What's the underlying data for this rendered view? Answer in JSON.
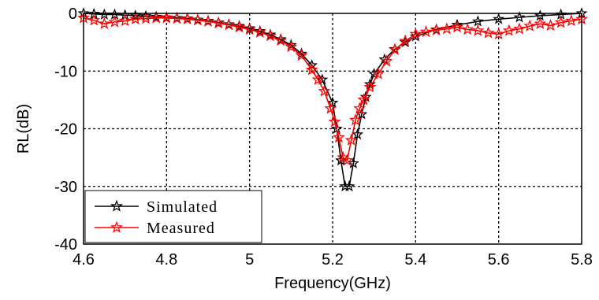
{
  "chart_data": {
    "type": "line",
    "xlabel": "Frequency(GHz)",
    "ylabel": "RL(dB)",
    "xlim": [
      4.6,
      5.8
    ],
    "ylim": [
      -40,
      0
    ],
    "xticks": [
      "4.6",
      "4.8",
      "5",
      "5.2",
      "5.4",
      "5.6",
      "5.8"
    ],
    "yticks": [
      "0",
      "-10",
      "-20",
      "-30",
      "-40"
    ],
    "grid": true,
    "legend_position": "bottom-left",
    "series": [
      {
        "name": "Simulated",
        "color": "#000000",
        "marker": "star",
        "x": [
          4.6,
          4.625,
          4.65,
          4.675,
          4.7,
          4.725,
          4.75,
          4.775,
          4.8,
          4.825,
          4.85,
          4.875,
          4.9,
          4.925,
          4.95,
          4.975,
          5.0,
          5.025,
          5.05,
          5.075,
          5.1,
          5.125,
          5.15,
          5.175,
          5.2,
          5.21,
          5.22,
          5.23,
          5.24,
          5.25,
          5.26,
          5.27,
          5.28,
          5.29,
          5.3,
          5.325,
          5.35,
          5.375,
          5.4,
          5.45,
          5.5,
          5.55,
          5.6,
          5.65,
          5.7,
          5.75,
          5.8
        ],
        "y": [
          0,
          -0.1,
          -0.2,
          -0.2,
          -0.3,
          -0.4,
          -0.5,
          -0.6,
          -0.7,
          -0.8,
          -0.9,
          -1.1,
          -1.3,
          -1.6,
          -1.9,
          -2.2,
          -2.6,
          -3.1,
          -3.7,
          -4.5,
          -5.5,
          -7.0,
          -9.0,
          -11.5,
          -15.5,
          -20.0,
          -25.5,
          -30.0,
          -30.0,
          -26.0,
          -21.0,
          -17.5,
          -14.5,
          -12.3,
          -10.5,
          -8.0,
          -6.2,
          -5.0,
          -4.0,
          -2.8,
          -2.0,
          -1.4,
          -1.0,
          -0.7,
          -0.4,
          -0.2,
          0
        ]
      },
      {
        "name": "Measured",
        "color": "#ff0000",
        "marker": "star-outline",
        "x": [
          4.6,
          4.625,
          4.65,
          4.675,
          4.7,
          4.725,
          4.75,
          4.775,
          4.8,
          4.825,
          4.85,
          4.875,
          4.9,
          4.925,
          4.95,
          4.975,
          5.0,
          5.025,
          5.05,
          5.075,
          5.1,
          5.125,
          5.15,
          5.165,
          5.18,
          5.195,
          5.205,
          5.215,
          5.225,
          5.235,
          5.245,
          5.255,
          5.265,
          5.275,
          5.29,
          5.31,
          5.33,
          5.35,
          5.375,
          5.4,
          5.425,
          5.45,
          5.475,
          5.5,
          5.525,
          5.55,
          5.575,
          5.6,
          5.625,
          5.65,
          5.675,
          5.7,
          5.725,
          5.75,
          5.775,
          5.8
        ],
        "y": [
          -0.8,
          -1.2,
          -1.8,
          -1.5,
          -1.3,
          -1.0,
          -0.9,
          -0.8,
          -0.8,
          -0.9,
          -1.0,
          -1.2,
          -1.4,
          -1.7,
          -2.0,
          -2.4,
          -2.8,
          -3.3,
          -3.9,
          -4.7,
          -5.8,
          -7.3,
          -9.8,
          -11.5,
          -13.5,
          -16.5,
          -18.8,
          -21.5,
          -25.0,
          -25.5,
          -22.0,
          -18.5,
          -16.5,
          -15.0,
          -12.8,
          -10.5,
          -8.3,
          -6.3,
          -4.8,
          -3.6,
          -3.2,
          -2.9,
          -2.7,
          -2.4,
          -2.8,
          -3.0,
          -3.4,
          -3.6,
          -3.0,
          -2.7,
          -2.2,
          -1.8,
          -2.1,
          -1.6,
          -1.3,
          -1.0
        ]
      }
    ]
  }
}
